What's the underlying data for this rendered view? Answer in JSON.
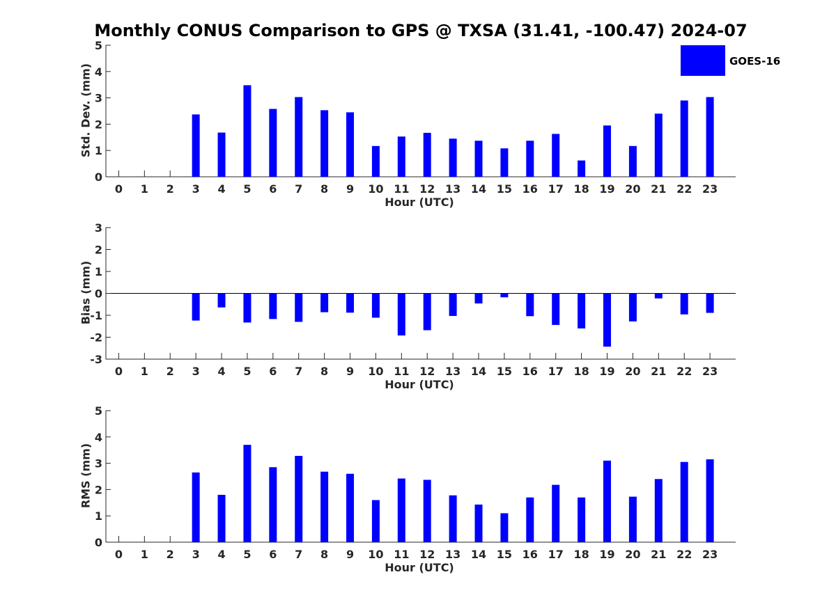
{
  "chart_data": {
    "title": "Monthly CONUS Comparison to GPS @ TXSA (31.41, -100.47) 2024-07",
    "legend": {
      "label": "GOES-16",
      "color": "#0000ff",
      "position": "top-right"
    },
    "bar_color": "#0000ff",
    "charts": [
      {
        "type": "bar",
        "xlabel": "Hour (UTC)",
        "ylabel": "Std. Dev. (mm)",
        "ylim": [
          0,
          5
        ],
        "yticks": [
          0,
          1,
          2,
          3,
          4,
          5
        ],
        "categories": [
          "0",
          "1",
          "2",
          "3",
          "4",
          "5",
          "6",
          "7",
          "8",
          "9",
          "10",
          "11",
          "12",
          "13",
          "14",
          "15",
          "16",
          "17",
          "18",
          "19",
          "20",
          "21",
          "22",
          "23"
        ],
        "values": [
          0,
          0,
          0,
          2.37,
          1.68,
          3.48,
          2.58,
          3.03,
          2.53,
          2.45,
          1.17,
          1.53,
          1.67,
          1.45,
          1.37,
          1.08,
          1.37,
          1.63,
          0.62,
          1.95,
          1.17,
          2.4,
          2.9,
          3.03
        ]
      },
      {
        "type": "bar",
        "xlabel": "Hour (UTC)",
        "ylabel": "Bias (mm)",
        "ylim": [
          -3,
          3
        ],
        "yticks": [
          -3,
          -2,
          -1,
          0,
          1,
          2,
          3
        ],
        "categories": [
          "0",
          "1",
          "2",
          "3",
          "4",
          "5",
          "6",
          "7",
          "8",
          "9",
          "10",
          "11",
          "12",
          "13",
          "14",
          "15",
          "16",
          "17",
          "18",
          "19",
          "20",
          "21",
          "22",
          "23"
        ],
        "values": [
          0,
          0,
          0,
          -1.24,
          -0.64,
          -1.33,
          -1.17,
          -1.3,
          -0.86,
          -0.88,
          -1.11,
          -1.92,
          -1.68,
          -1.03,
          -0.46,
          -0.18,
          -1.04,
          -1.44,
          -1.6,
          -2.43,
          -1.28,
          -0.23,
          -0.96,
          -0.89
        ]
      },
      {
        "type": "bar",
        "xlabel": "Hour (UTC)",
        "ylabel": "RMS (mm)",
        "ylim": [
          0,
          5
        ],
        "yticks": [
          0,
          1,
          2,
          3,
          4,
          5
        ],
        "categories": [
          "0",
          "1",
          "2",
          "3",
          "4",
          "5",
          "6",
          "7",
          "8",
          "9",
          "10",
          "11",
          "12",
          "13",
          "14",
          "15",
          "16",
          "17",
          "18",
          "19",
          "20",
          "21",
          "22",
          "23"
        ],
        "values": [
          0,
          0,
          0,
          2.65,
          1.8,
          3.7,
          2.85,
          3.28,
          2.68,
          2.6,
          1.6,
          2.42,
          2.37,
          1.78,
          1.43,
          1.1,
          1.7,
          2.18,
          1.7,
          3.1,
          1.73,
          2.4,
          3.05,
          3.15
        ]
      }
    ]
  }
}
